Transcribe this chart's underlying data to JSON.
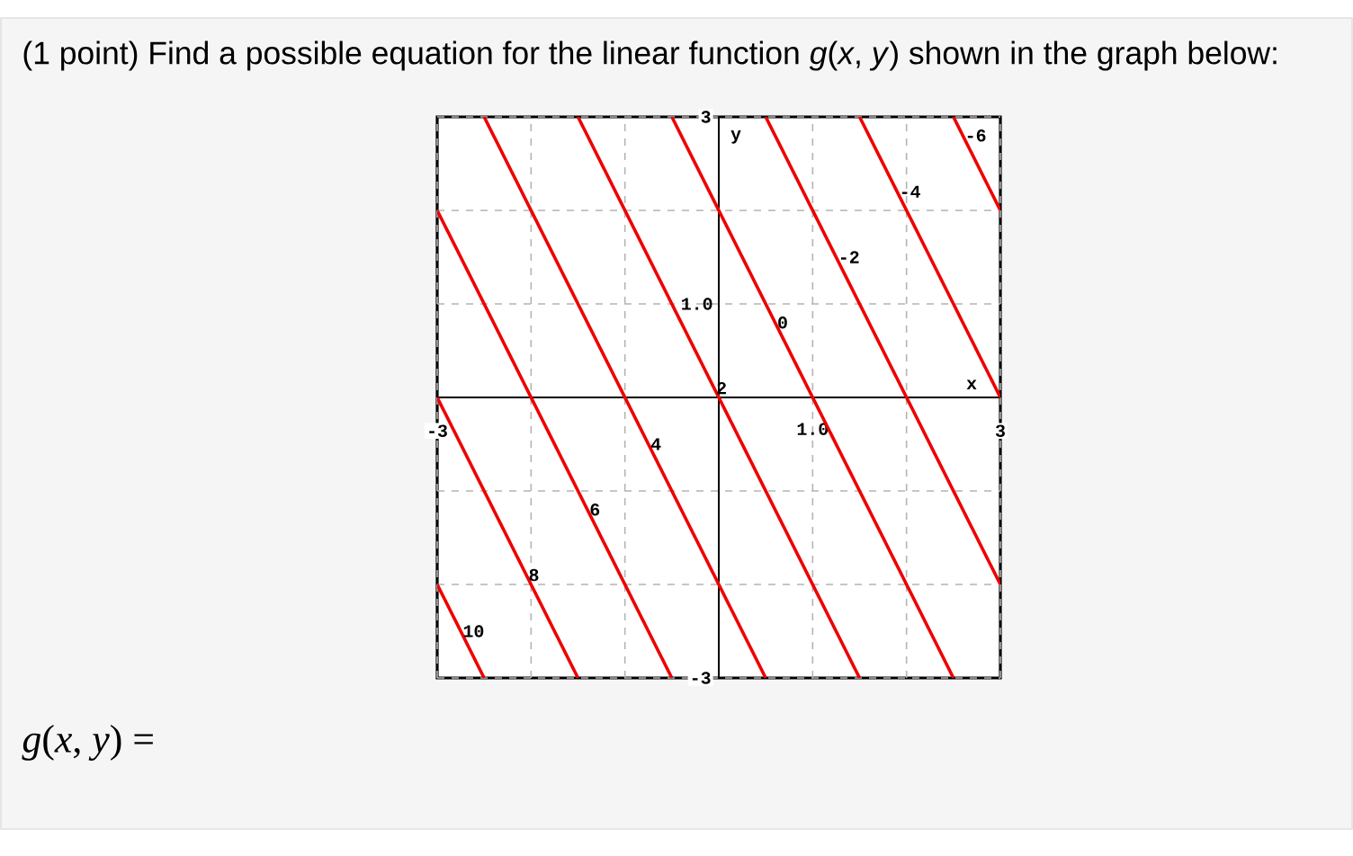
{
  "chart_data": {
    "type": "line",
    "title": "(1 point) Find a possible equation for the linear function *g*(*x*, *y*) shown in the graph below:",
    "xlabel": "x",
    "ylabel": "y",
    "xlim": [
      -3,
      3
    ],
    "ylim": [
      -3,
      3
    ],
    "xticks": [
      -3,
      {
        "value": -2,
        "label": null
      },
      {
        "value": -1,
        "label": null
      },
      {
        "value": 1,
        "label": "1.0"
      },
      {
        "value": 2,
        "label": null
      },
      3
    ],
    "yticks": [
      -3,
      {
        "value": -2,
        "label": null
      },
      {
        "value": -1,
        "label": null
      },
      {
        "value": 1,
        "label": "1.0"
      },
      {
        "value": 2,
        "label": null
      },
      3
    ],
    "grid": true,
    "series": [
      {
        "color": "#ee0000",
        "x": [
          -3,
          -2.5
        ],
        "values": [
          -2,
          -3
        ]
      },
      {
        "color": "#ee0000",
        "x": [
          -3,
          -1.5
        ],
        "values": [
          0,
          -3
        ]
      },
      {
        "color": "#ee0000",
        "x": [
          -3,
          -0.5
        ],
        "values": [
          2,
          -3
        ]
      },
      {
        "color": "#ee0000",
        "x": [
          -2.5,
          0.5
        ],
        "values": [
          3,
          -3
        ]
      },
      {
        "color": "#ee0000",
        "x": [
          -1.5,
          1.5
        ],
        "values": [
          3,
          -3
        ]
      },
      {
        "color": "#ee0000",
        "x": [
          -0.5,
          2.5
        ],
        "values": [
          3,
          -3
        ]
      },
      {
        "color": "#ee0000",
        "x": [
          0.5,
          3
        ],
        "values": [
          3,
          -2
        ]
      },
      {
        "color": "#ee0000",
        "x": [
          1.5,
          3
        ],
        "values": [
          3,
          0
        ]
      },
      {
        "color": "#ee0000",
        "x": [
          2.5,
          3
        ],
        "values": [
          3,
          2
        ]
      }
    ],
    "annotations": [
      {
        "text": "10",
        "x": -2.75,
        "y": -2.5
      },
      {
        "text": "8",
        "x": -2.05,
        "y": -1.9
      },
      {
        "text": "6",
        "x": -1.4,
        "y": -1.2
      },
      {
        "text": "4",
        "x": -0.75,
        "y": -0.5
      },
      {
        "text": "2",
        "x": -0.05,
        "y": 0.1
      },
      {
        "text": "0",
        "x": 0.6,
        "y": 0.8
      },
      {
        "text": "-2",
        "x": 1.25,
        "y": 1.5
      },
      {
        "text": "-4",
        "x": 1.9,
        "y": 2.2
      },
      {
        "text": "-6",
        "x": 2.6,
        "y": 2.8
      },
      "*g*(*x*, *y*) ="
    ]
  }
}
